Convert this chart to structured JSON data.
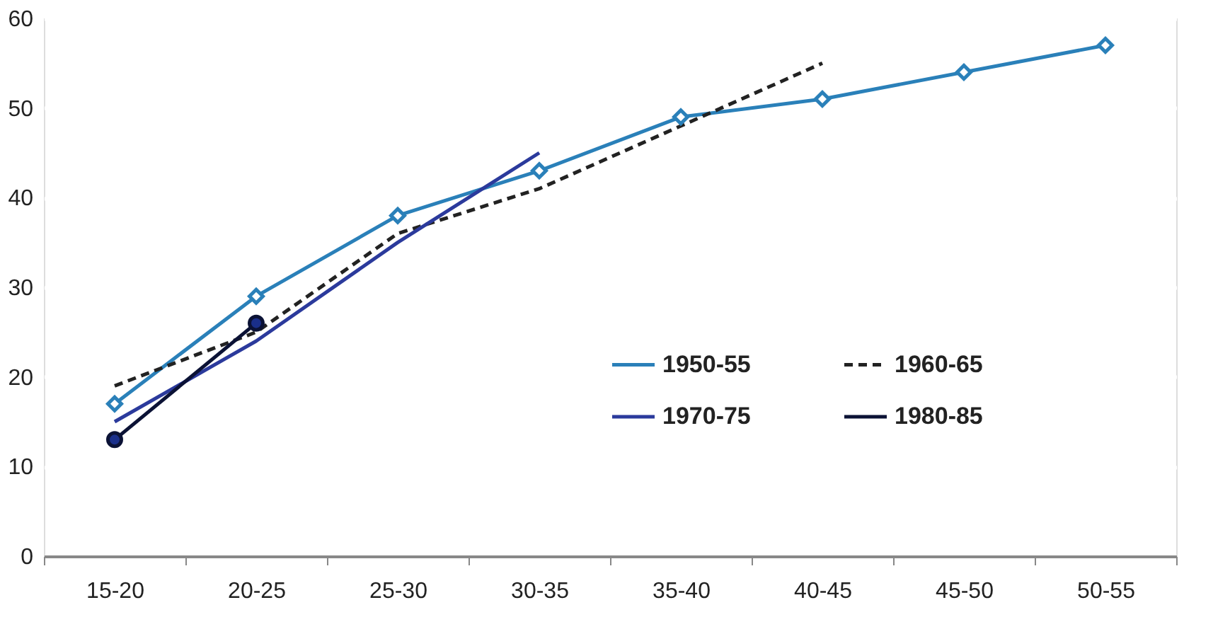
{
  "chart_data": {
    "type": "line",
    "categories": [
      "15-20",
      "20-25",
      "25-30",
      "30-35",
      "35-40",
      "40-45",
      "45-50",
      "50-55"
    ],
    "series": [
      {
        "name": "1950-55",
        "color": "#2a80b9",
        "marker": "diamond",
        "line_style": "solid",
        "values": [
          17,
          29,
          38,
          43,
          49,
          51,
          54,
          57
        ]
      },
      {
        "name": "1960-65",
        "color": "#222222",
        "marker": "none",
        "line_style": "dashed",
        "values": [
          19,
          25,
          36,
          41,
          48,
          55,
          null,
          null
        ]
      },
      {
        "name": "1970-75",
        "color": "#2b3a9c",
        "marker": "none",
        "line_style": "solid",
        "values": [
          15,
          24,
          35,
          45,
          null,
          null,
          null,
          null
        ]
      },
      {
        "name": "1980-85",
        "color": "#0b1235",
        "marker": "circle",
        "line_style": "solid",
        "values": [
          13,
          26,
          null,
          null,
          null,
          null,
          null,
          null
        ]
      }
    ],
    "ylim": [
      0,
      60
    ],
    "yticks": [
      0,
      10,
      20,
      30,
      40,
      50,
      60
    ],
    "grid": "y",
    "legend": "bottom right"
  }
}
